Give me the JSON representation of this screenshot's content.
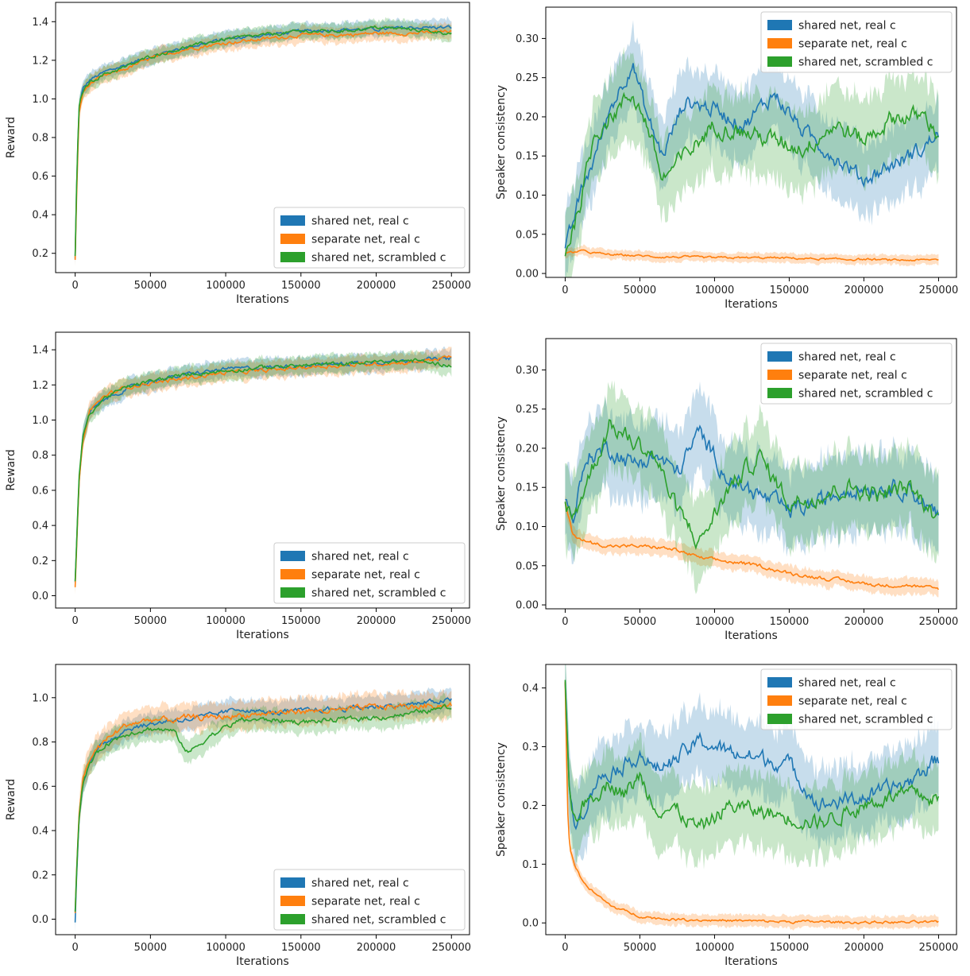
{
  "colors": {
    "shared_real": "#1f77b4",
    "separate_real": "#ff7f0e",
    "shared_scrambled": "#2ca02c"
  },
  "chart_data": [
    {
      "type": "line",
      "panel": "row1-left",
      "xlabel": "Iterations",
      "ylabel": "Reward",
      "xlim": [
        -13000,
        262000
      ],
      "ylim": [
        0.1,
        1.5
      ],
      "xticks": [
        0,
        50000,
        100000,
        150000,
        200000,
        250000
      ],
      "yticks": [
        0.2,
        0.4,
        0.6,
        0.8,
        1.0,
        1.2,
        1.4
      ],
      "grid": false,
      "legend_position": "lower-right",
      "x": [
        0,
        1000,
        2500,
        5000,
        10000,
        20000,
        35000,
        50000,
        75000,
        100000,
        125000,
        150000,
        175000,
        200000,
        225000,
        250000
      ],
      "series": [
        {
          "name": "shared net, real c",
          "values": [
            0.17,
            0.55,
            0.95,
            1.05,
            1.1,
            1.14,
            1.18,
            1.22,
            1.27,
            1.31,
            1.33,
            1.35,
            1.36,
            1.36,
            1.37,
            1.37
          ],
          "band": 0.04
        },
        {
          "name": "separate net, real c",
          "values": [
            0.16,
            0.5,
            0.92,
            1.03,
            1.08,
            1.12,
            1.16,
            1.21,
            1.26,
            1.29,
            1.31,
            1.33,
            1.33,
            1.34,
            1.34,
            1.35
          ],
          "band": 0.04
        },
        {
          "name": "shared net, scrambled c",
          "values": [
            0.18,
            0.56,
            0.96,
            1.04,
            1.09,
            1.13,
            1.17,
            1.22,
            1.27,
            1.31,
            1.33,
            1.35,
            1.35,
            1.37,
            1.36,
            1.34
          ],
          "band": 0.04
        }
      ]
    },
    {
      "type": "line",
      "panel": "row1-right",
      "xlabel": "Iterations",
      "ylabel": "Speaker consistency",
      "xlim": [
        -13000,
        262000
      ],
      "ylim": [
        -0.005,
        0.34
      ],
      "xticks": [
        0,
        50000,
        100000,
        150000,
        200000,
        250000
      ],
      "yticks": [
        0.0,
        0.05,
        0.1,
        0.15,
        0.2,
        0.25,
        0.3
      ],
      "grid": false,
      "legend_position": "top-right",
      "x": [
        0,
        10000,
        20000,
        30000,
        45000,
        55000,
        65000,
        80000,
        100000,
        120000,
        140000,
        160000,
        180000,
        200000,
        220000,
        240000,
        250000
      ],
      "series": [
        {
          "name": "shared net, real c",
          "values": [
            0.025,
            0.1,
            0.15,
            0.21,
            0.27,
            0.2,
            0.15,
            0.22,
            0.21,
            0.19,
            0.23,
            0.18,
            0.15,
            0.12,
            0.14,
            0.16,
            0.18
          ],
          "band": 0.045
        },
        {
          "name": "separate net, real c",
          "values": [
            0.025,
            0.029,
            0.026,
            0.024,
            0.023,
            0.022,
            0.021,
            0.021,
            0.02,
            0.02,
            0.02,
            0.019,
            0.018,
            0.018,
            0.017,
            0.017,
            0.018
          ],
          "band": 0.006
        },
        {
          "name": "shared net, scrambled c",
          "values": [
            0.025,
            0.09,
            0.18,
            0.2,
            0.23,
            0.19,
            0.12,
            0.15,
            0.19,
            0.18,
            0.17,
            0.16,
            0.19,
            0.17,
            0.2,
            0.2,
            0.18
          ],
          "band": 0.05
        }
      ]
    },
    {
      "type": "line",
      "panel": "row2-left",
      "xlabel": "Iterations",
      "ylabel": "Reward",
      "xlim": [
        -13000,
        262000
      ],
      "ylim": [
        -0.07,
        1.5
      ],
      "xticks": [
        0,
        50000,
        100000,
        150000,
        200000,
        250000
      ],
      "yticks": [
        0.0,
        0.2,
        0.4,
        0.6,
        0.8,
        1.0,
        1.2,
        1.4
      ],
      "grid": false,
      "legend_position": "lower-right",
      "x": [
        0,
        1000,
        2500,
        5000,
        10000,
        20000,
        35000,
        50000,
        75000,
        100000,
        125000,
        150000,
        175000,
        200000,
        225000,
        250000
      ],
      "series": [
        {
          "name": "shared net, real c",
          "values": [
            0.07,
            0.3,
            0.65,
            0.9,
            1.05,
            1.12,
            1.18,
            1.22,
            1.26,
            1.29,
            1.3,
            1.31,
            1.32,
            1.33,
            1.34,
            1.35
          ],
          "band": 0.05
        },
        {
          "name": "separate net, real c",
          "values": [
            0.05,
            0.28,
            0.62,
            0.88,
            1.06,
            1.14,
            1.19,
            1.21,
            1.24,
            1.27,
            1.28,
            1.3,
            1.31,
            1.32,
            1.33,
            1.36
          ],
          "band": 0.05
        },
        {
          "name": "shared net, scrambled c",
          "values": [
            0.08,
            0.31,
            0.66,
            0.91,
            1.04,
            1.13,
            1.19,
            1.22,
            1.26,
            1.28,
            1.3,
            1.31,
            1.32,
            1.33,
            1.34,
            1.31
          ],
          "band": 0.05
        }
      ]
    },
    {
      "type": "line",
      "panel": "row2-right",
      "xlabel": "Iterations",
      "ylabel": "Speaker consistency",
      "xlim": [
        -13000,
        262000
      ],
      "ylim": [
        -0.005,
        0.34
      ],
      "xticks": [
        0,
        50000,
        100000,
        150000,
        200000,
        250000
      ],
      "yticks": [
        0.0,
        0.05,
        0.1,
        0.15,
        0.2,
        0.25,
        0.3
      ],
      "grid": false,
      "legend_position": "top-right",
      "x": [
        0,
        5000,
        15000,
        30000,
        45000,
        60000,
        75000,
        90000,
        110000,
        130000,
        150000,
        170000,
        190000,
        210000,
        230000,
        250000
      ],
      "series": [
        {
          "name": "shared net, real c",
          "values": [
            0.13,
            0.11,
            0.19,
            0.2,
            0.18,
            0.19,
            0.17,
            0.22,
            0.16,
            0.14,
            0.12,
            0.13,
            0.15,
            0.15,
            0.15,
            0.11
          ],
          "band": 0.05
        },
        {
          "name": "separate net, real c",
          "values": [
            0.13,
            0.09,
            0.08,
            0.075,
            0.075,
            0.074,
            0.07,
            0.06,
            0.055,
            0.05,
            0.04,
            0.035,
            0.03,
            0.025,
            0.025,
            0.02
          ],
          "band": 0.01
        },
        {
          "name": "shared net, scrambled c",
          "values": [
            0.13,
            0.11,
            0.16,
            0.23,
            0.21,
            0.19,
            0.12,
            0.08,
            0.15,
            0.19,
            0.13,
            0.14,
            0.15,
            0.14,
            0.15,
            0.11
          ],
          "band": 0.05
        }
      ]
    },
    {
      "type": "line",
      "panel": "row3-left",
      "xlabel": "Iterations",
      "ylabel": "Reward",
      "xlim": [
        -13000,
        262000
      ],
      "ylim": [
        -0.07,
        1.15
      ],
      "xticks": [
        0,
        50000,
        100000,
        150000,
        200000,
        250000
      ],
      "yticks": [
        0.0,
        0.2,
        0.4,
        0.6,
        0.8,
        1.0
      ],
      "grid": false,
      "legend_position": "lower-right",
      "x": [
        0,
        1000,
        2500,
        5000,
        10000,
        20000,
        35000,
        50000,
        65000,
        75000,
        90000,
        110000,
        130000,
        150000,
        175000,
        200000,
        225000,
        250000
      ],
      "series": [
        {
          "name": "shared net, real c",
          "values": [
            -0.01,
            0.2,
            0.45,
            0.62,
            0.72,
            0.8,
            0.86,
            0.88,
            0.9,
            0.9,
            0.92,
            0.95,
            0.93,
            0.94,
            0.95,
            0.96,
            0.97,
            0.99
          ],
          "band": 0.05
        },
        {
          "name": "separate net, real c",
          "values": [
            0.02,
            0.22,
            0.46,
            0.63,
            0.73,
            0.81,
            0.88,
            0.9,
            0.9,
            0.91,
            0.91,
            0.92,
            0.93,
            0.94,
            0.94,
            0.96,
            0.96,
            0.97
          ],
          "band": 0.06
        },
        {
          "name": "shared net, scrambled c",
          "values": [
            0.03,
            0.21,
            0.44,
            0.61,
            0.71,
            0.79,
            0.84,
            0.86,
            0.85,
            0.75,
            0.83,
            0.9,
            0.9,
            0.89,
            0.9,
            0.91,
            0.93,
            0.96
          ],
          "band": 0.05
        }
      ]
    },
    {
      "type": "line",
      "panel": "row3-right",
      "xlabel": "Iterations",
      "ylabel": "Speaker consistency",
      "xlim": [
        -13000,
        262000
      ],
      "ylim": [
        -0.02,
        0.44
      ],
      "xticks": [
        0,
        50000,
        100000,
        150000,
        200000,
        250000
      ],
      "yticks": [
        0.0,
        0.1,
        0.2,
        0.3,
        0.4
      ],
      "grid": false,
      "legend_position": "top-right",
      "x": [
        0,
        1500,
        3000,
        6000,
        10000,
        15000,
        20000,
        30000,
        40000,
        50000,
        60000,
        75000,
        90000,
        110000,
        130000,
        150000,
        170000,
        190000,
        210000,
        230000,
        250000
      ],
      "series": [
        {
          "name": "shared net, real c",
          "values": [
            0.41,
            0.3,
            0.22,
            0.18,
            0.18,
            0.21,
            0.24,
            0.26,
            0.27,
            0.29,
            0.26,
            0.28,
            0.31,
            0.29,
            0.28,
            0.27,
            0.2,
            0.21,
            0.22,
            0.24,
            0.28
          ],
          "band": 0.06
        },
        {
          "name": "separate net, real c",
          "values": [
            0.41,
            0.2,
            0.13,
            0.1,
            0.08,
            0.06,
            0.05,
            0.03,
            0.02,
            0.012,
            0.008,
            0.006,
            0.005,
            0.004,
            0.003,
            0.002,
            0.002,
            0.001,
            0.001,
            0.001,
            0.001
          ],
          "band": 0.01
        },
        {
          "name": "shared net, scrambled c",
          "values": [
            0.41,
            0.3,
            0.22,
            0.18,
            0.19,
            0.21,
            0.22,
            0.24,
            0.22,
            0.25,
            0.2,
            0.19,
            0.16,
            0.2,
            0.19,
            0.18,
            0.17,
            0.19,
            0.21,
            0.22,
            0.21
          ],
          "band": 0.06
        }
      ]
    }
  ]
}
